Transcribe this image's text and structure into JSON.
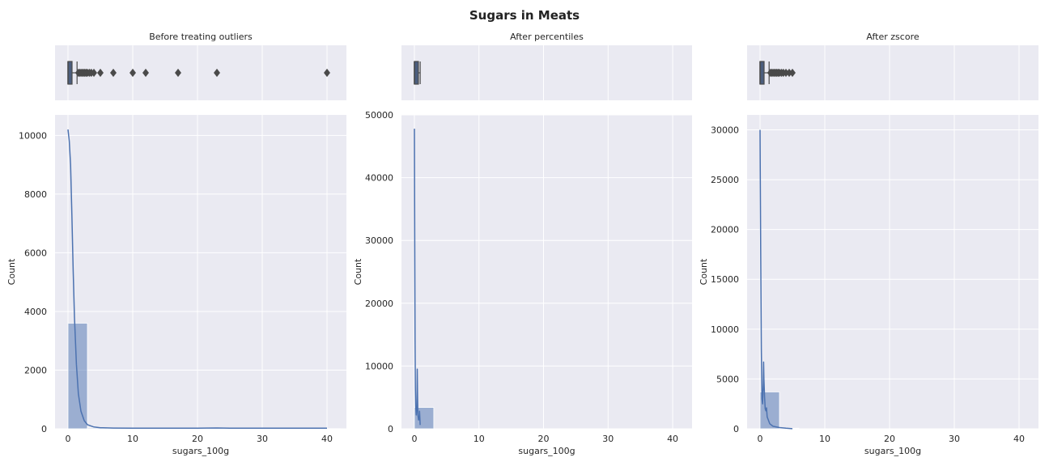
{
  "suptitle": "Sugars in Meats",
  "chart_data": [
    {
      "type": "bar",
      "title": "Before treating outliers",
      "xlabel": "sugars_100g",
      "ylabel": "Count",
      "xlim": [
        -2,
        43
      ],
      "ylim": [
        0,
        10700
      ],
      "xticks": [
        0,
        10,
        20,
        30,
        40
      ],
      "yticks": [
        0,
        2000,
        4000,
        6000,
        8000,
        10000
      ],
      "grid": true,
      "box": {
        "q1": 0,
        "median": 0,
        "q3": 0.6,
        "whisker_low": 0,
        "whisker_high": 1.4,
        "outliers": [
          1.6,
          1.8,
          2.0,
          2.2,
          2.4,
          2.6,
          2.8,
          3.0,
          3.3,
          3.6,
          4.0,
          5.0,
          7.0,
          10.0,
          12.0,
          17.0,
          23.0,
          40.0
        ]
      },
      "bins": [
        {
          "x0": 0,
          "x1": 3,
          "count": 3600
        },
        {
          "x0": 3,
          "x1": 6,
          "count": 30
        },
        {
          "x0": 6,
          "x1": 9,
          "count": 12
        },
        {
          "x0": 9,
          "x1": 12,
          "count": 8
        },
        {
          "x0": 12,
          "x1": 15,
          "count": 6
        },
        {
          "x0": 15,
          "x1": 18,
          "count": 6
        },
        {
          "x0": 18,
          "x1": 21,
          "count": 4
        },
        {
          "x0": 21,
          "x1": 24,
          "count": 8
        },
        {
          "x0": 24,
          "x1": 27,
          "count": 4
        },
        {
          "x0": 27,
          "x1": 30,
          "count": 3
        },
        {
          "x0": 30,
          "x1": 33,
          "count": 3
        },
        {
          "x0": 33,
          "x1": 36,
          "count": 3
        },
        {
          "x0": 36,
          "x1": 39,
          "count": 3
        },
        {
          "x0": 39,
          "x1": 42,
          "count": 5
        }
      ],
      "kde": [
        [
          0,
          10200
        ],
        [
          0.2,
          9800
        ],
        [
          0.4,
          9000
        ],
        [
          0.6,
          7300
        ],
        [
          0.8,
          5400
        ],
        [
          1.0,
          3800
        ],
        [
          1.3,
          2200
        ],
        [
          1.6,
          1200
        ],
        [
          2.0,
          600
        ],
        [
          2.5,
          280
        ],
        [
          3.0,
          140
        ],
        [
          4.0,
          60
        ],
        [
          5.0,
          35
        ],
        [
          7.0,
          25
        ],
        [
          10,
          22
        ],
        [
          15,
          20
        ],
        [
          20,
          20
        ],
        [
          23,
          28
        ],
        [
          25,
          20
        ],
        [
          30,
          18
        ],
        [
          35,
          18
        ],
        [
          40,
          22
        ]
      ]
    },
    {
      "type": "bar",
      "title": "After percentiles",
      "xlabel": "sugars_100g",
      "ylabel": "Count",
      "xlim": [
        -2,
        43
      ],
      "ylim": [
        0,
        50000
      ],
      "xticks": [
        0,
        10,
        20,
        30,
        40
      ],
      "yticks": [
        0,
        10000,
        20000,
        30000,
        40000,
        50000
      ],
      "grid": true,
      "box": {
        "q1": 0,
        "median": 0,
        "q3": 0.3,
        "whisker_low": 0,
        "whisker_high": 0.9,
        "outliers": []
      },
      "bins": [
        {
          "x0": 0,
          "x1": 3,
          "count": 3400
        }
      ],
      "kde": [
        [
          0,
          47800
        ],
        [
          0.05,
          30000
        ],
        [
          0.1,
          14000
        ],
        [
          0.15,
          6500
        ],
        [
          0.2,
          3500
        ],
        [
          0.3,
          2200
        ],
        [
          0.4,
          3500
        ],
        [
          0.45,
          9500
        ],
        [
          0.5,
          5000
        ],
        [
          0.55,
          2200
        ],
        [
          0.65,
          1400
        ],
        [
          0.75,
          1500
        ],
        [
          0.8,
          2800
        ],
        [
          0.85,
          1800
        ],
        [
          0.9,
          600
        ]
      ]
    },
    {
      "type": "bar",
      "title": "After zscore",
      "xlabel": "sugars_100g",
      "ylabel": "Count",
      "xlim": [
        -2,
        43
      ],
      "ylim": [
        0,
        31500
      ],
      "xticks": [
        0,
        10,
        20,
        30,
        40
      ],
      "yticks": [
        0,
        5000,
        10000,
        15000,
        20000,
        25000,
        30000
      ],
      "grid": true,
      "box": {
        "q1": 0,
        "median": 0,
        "q3": 0.6,
        "whisker_low": 0,
        "whisker_high": 1.4,
        "outliers": [
          1.6,
          1.8,
          2.0,
          2.2,
          2.4,
          2.6,
          2.8,
          3.0,
          3.3,
          3.6,
          4.0,
          4.5,
          5.0
        ]
      },
      "bins": [
        {
          "x0": 0,
          "x1": 3,
          "count": 3700
        },
        {
          "x0": 3,
          "x1": 6,
          "count": 60
        }
      ],
      "kde": [
        [
          0,
          30000
        ],
        [
          0.1,
          18000
        ],
        [
          0.2,
          8000
        ],
        [
          0.3,
          3000
        ],
        [
          0.4,
          2500
        ],
        [
          0.5,
          4500
        ],
        [
          0.55,
          6700
        ],
        [
          0.6,
          5000
        ],
        [
          0.7,
          3200
        ],
        [
          0.8,
          2000
        ],
        [
          0.9,
          1800
        ],
        [
          1.0,
          2100
        ],
        [
          1.1,
          1200
        ],
        [
          1.5,
          500
        ],
        [
          2.0,
          250
        ],
        [
          3.0,
          120
        ],
        [
          4.0,
          60
        ],
        [
          5.0,
          10
        ]
      ]
    }
  ]
}
